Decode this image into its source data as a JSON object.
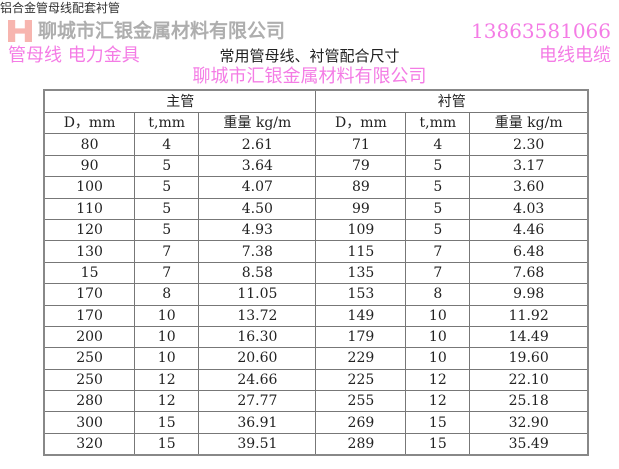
{
  "page": {
    "breadcrumb": "铝合金管母线配套衬管"
  },
  "table": {
    "title": "常用管母线、衬管配合尺寸",
    "group_headers": [
      "主管",
      "衬管"
    ],
    "columns": [
      "D，mm",
      "t,mm",
      "重量 kg/m",
      "D，mm",
      "t,mm",
      "重量 kg/m"
    ],
    "rows": [
      [
        "80",
        "4",
        "2.61",
        "71",
        "4",
        "2.30"
      ],
      [
        "90",
        "5",
        "3.64",
        "79",
        "5",
        "3.17"
      ],
      [
        "100",
        "5",
        "4.07",
        "89",
        "5",
        "3.60"
      ],
      [
        "110",
        "5",
        "4.50",
        "99",
        "5",
        "4.03"
      ],
      [
        "120",
        "5",
        "4.93",
        "109",
        "5",
        "4.46"
      ],
      [
        "130",
        "7",
        "7.38",
        "115",
        "7",
        "6.48"
      ],
      [
        "15",
        "7",
        "8.58",
        "135",
        "7",
        "7.68"
      ],
      [
        "170",
        "8",
        "11.05",
        "153",
        "8",
        "9.98"
      ],
      [
        "170",
        "10",
        "13.72",
        "149",
        "10",
        "11.92"
      ],
      [
        "200",
        "10",
        "16.30",
        "179",
        "10",
        "14.49"
      ],
      [
        "250",
        "10",
        "20.60",
        "229",
        "10",
        "19.60"
      ],
      [
        "250",
        "12",
        "24.66",
        "225",
        "12",
        "22.10"
      ],
      [
        "280",
        "12",
        "27.77",
        "255",
        "12",
        "25.18"
      ],
      [
        "300",
        "15",
        "36.91",
        "269",
        "15",
        "32.90"
      ],
      [
        "320",
        "15",
        "39.51",
        "289",
        "15",
        "35.49"
      ]
    ]
  },
  "watermarks": {
    "company_diag": "聊城市汇银金属材料有限公司",
    "phone": "13863581066",
    "products_left": "管母线 电力金具",
    "products_right": "电线电缆",
    "logo_text": "聊城市汇银金属材料有限公司"
  },
  "colors": {
    "watermark": "#f050dc",
    "border": "#777777"
  }
}
